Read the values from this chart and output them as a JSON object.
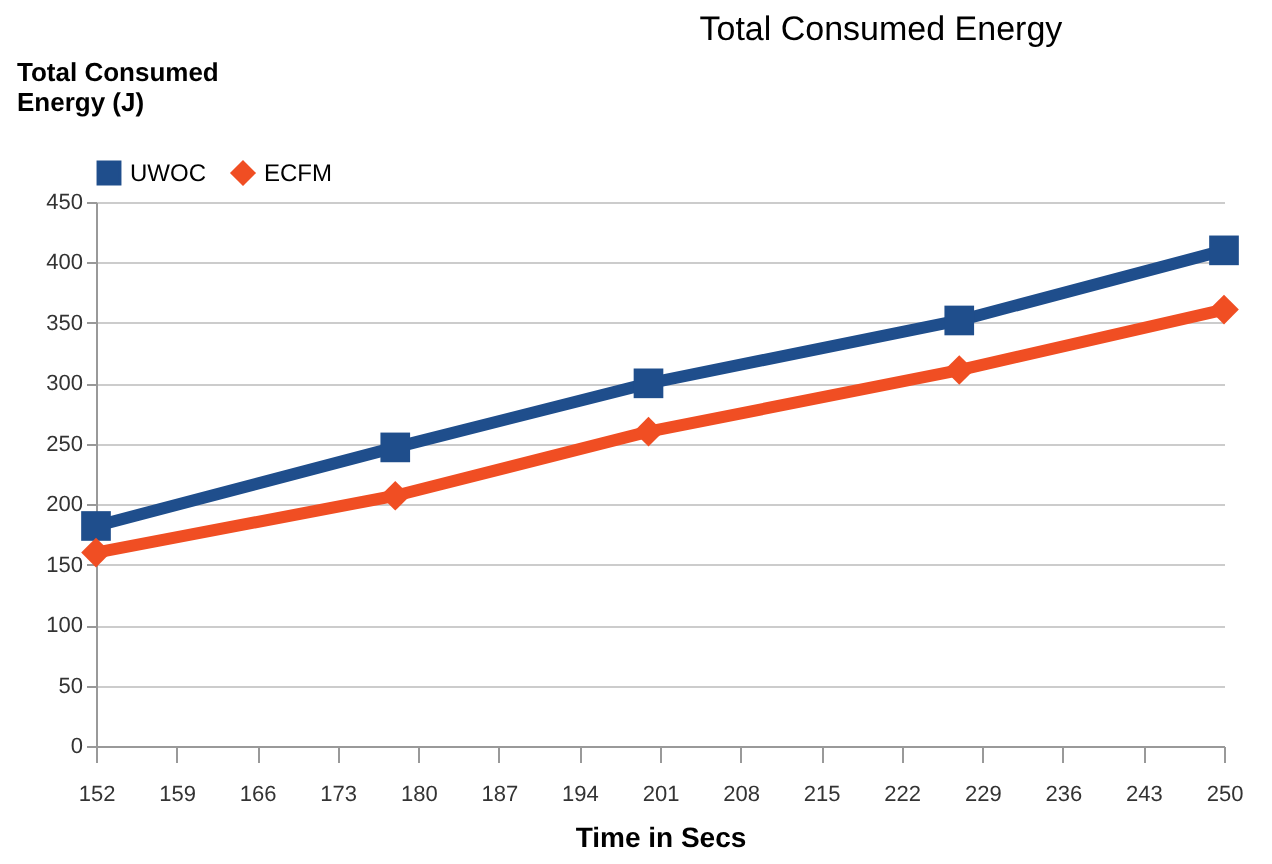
{
  "chart_data": {
    "type": "line",
    "title": "Total Consumed Energy",
    "xlabel": "Time in Secs",
    "ylabel": "Total Consumed Energy (J)",
    "x": [
      152,
      178,
      200,
      227,
      250
    ],
    "series": [
      {
        "name": "UWOC",
        "color": "#1f4e8c",
        "marker": "square",
        "values": [
          182,
          247,
          300,
          352,
          410
        ]
      },
      {
        "name": "ECFM",
        "color": "#f04e23",
        "marker": "diamond",
        "values": [
          160,
          207,
          260,
          311,
          361
        ]
      }
    ],
    "xlim": [
      152,
      250
    ],
    "xticks": [
      152,
      159,
      166,
      173,
      180,
      187,
      194,
      201,
      208,
      215,
      222,
      229,
      236,
      243,
      250
    ],
    "ylim": [
      0,
      450
    ],
    "yticks": [
      0,
      50,
      100,
      150,
      200,
      250,
      300,
      350,
      400,
      450
    ],
    "grid": "y",
    "legend": "top",
    "line_style": "solid"
  }
}
